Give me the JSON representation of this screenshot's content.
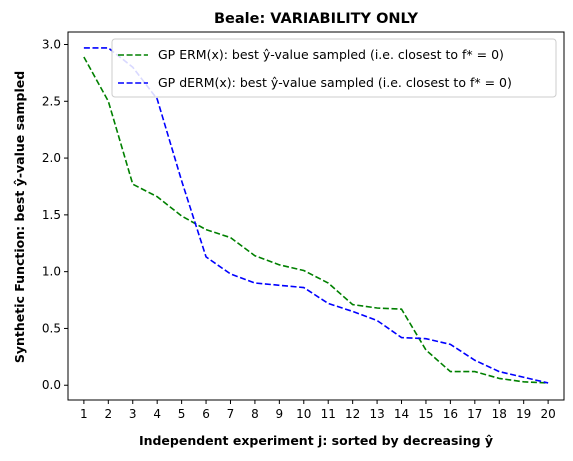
{
  "chart_data": {
    "type": "line",
    "title": "Beale: VARIABILITY ONLY",
    "xlabel": "Independent experiment j: sorted by decreasing ŷ",
    "ylabel": "Synthetic Function: best ŷ-value sampled",
    "xlim": [
      0.35,
      20.65
    ],
    "ylim": [
      -0.13,
      3.11
    ],
    "x": [
      1,
      2,
      3,
      4,
      5,
      6,
      7,
      8,
      9,
      10,
      11,
      12,
      13,
      14,
      15,
      16,
      17,
      18,
      19,
      20
    ],
    "xticks": [
      "1",
      "2",
      "3",
      "4",
      "5",
      "6",
      "7",
      "8",
      "9",
      "10",
      "11",
      "12",
      "13",
      "14",
      "15",
      "16",
      "17",
      "18",
      "19",
      "20"
    ],
    "yticks": [
      0.0,
      0.5,
      1.0,
      1.5,
      2.0,
      2.5,
      3.0
    ],
    "ytick_labels": [
      "0.0",
      "0.5",
      "1.0",
      "1.5",
      "2.0",
      "2.5",
      "3.0"
    ],
    "grid": false,
    "legend_position": "top-right",
    "series": [
      {
        "name": "GP ERM(x):   best ŷ-value sampled (i.e. closest to f* = 0)",
        "color": "#008000",
        "style": "dashed",
        "values": [
          2.89,
          2.5,
          1.77,
          1.66,
          1.49,
          1.37,
          1.3,
          1.14,
          1.06,
          1.01,
          0.9,
          0.71,
          0.68,
          0.67,
          0.31,
          0.12,
          0.12,
          0.06,
          0.03,
          0.02
        ]
      },
      {
        "name": "GP dERM(x): best ŷ-value sampled (i.e. closest to f* = 0)",
        "color": "#0000ff",
        "style": "dashed",
        "values": [
          2.97,
          2.97,
          2.8,
          2.52,
          1.8,
          1.13,
          0.98,
          0.9,
          0.88,
          0.86,
          0.72,
          0.65,
          0.57,
          0.42,
          0.41,
          0.36,
          0.22,
          0.12,
          0.07,
          0.02
        ]
      }
    ]
  }
}
